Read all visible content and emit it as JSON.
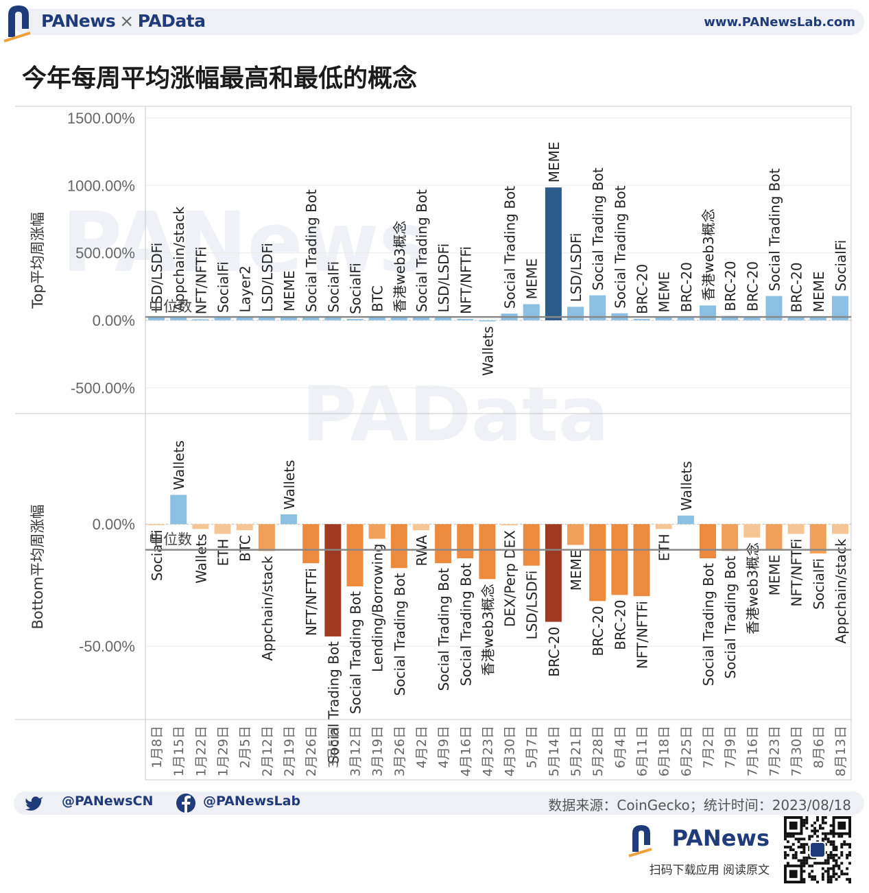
{
  "header": {
    "brand_left": "PANews",
    "brand_sep": "×",
    "brand_right": "PAData",
    "site": "www.PANewsLab.com"
  },
  "title": "今年每周平均涨幅最高和最低的概念",
  "footer": {
    "twitter": "@PANewsCN",
    "facebook": "@PANewsLab",
    "source": "数据来源：CoinGecko；统计时间：2023/08/18",
    "app_name": "PANews",
    "tagline": "扫码下载应用  阅读原文"
  },
  "watermarks": [
    "PANews",
    "PAData"
  ],
  "colors": {
    "top_light": "#8cc0e3",
    "top_dark": "#2d5c8a",
    "bottom_light": "#f6c594",
    "bottom_mid": "#ec8a3d",
    "bottom_dark": "#a13a22",
    "brand": "#1f3b7a"
  },
  "chart_data": {
    "type": "bar",
    "x": [
      "1月8日",
      "1月15日",
      "1月22日",
      "1月29日",
      "2月5日",
      "2月12日",
      "2月19日",
      "2月26日",
      "3月5日",
      "3月12日",
      "3月19日",
      "3月26日",
      "4月2日",
      "4月9日",
      "4月16日",
      "4月23日",
      "4月30日",
      "5月7日",
      "5月14日",
      "5月21日",
      "5月28日",
      "6月4日",
      "6月11日",
      "6月18日",
      "6月25日",
      "7月2日",
      "7月9日",
      "7月16日",
      "7月23日",
      "7月30日",
      "8月6日",
      "8月13日"
    ],
    "panels": [
      {
        "ylabel": "Top平均周涨幅",
        "ylim": [
          -600,
          1500
        ],
        "ticks": [
          1500,
          1000,
          500,
          0,
          -500
        ],
        "tick_labels": [
          "1500.00%",
          "1000.00%",
          "500.00%",
          "0.00%",
          "-500.00%"
        ],
        "median_label": "中位数",
        "median": 25,
        "categories": [
          "LSD/LSDFi",
          "Appchain/stack",
          "NFT/NFTFi",
          "SocialFi",
          "Layer2",
          "LSD/LSDFi",
          "MEME",
          "Social Trading Bot",
          "SocialFi",
          "SocialFi",
          "BTC",
          "香港web3概念",
          "Social Trading Bot",
          "LSD/LSDFi",
          "NFT/NFTFi",
          "Wallets",
          "Social Trading Bot",
          "MEME",
          "MEME",
          "LSD/LSDFi",
          "Social Trading Bot",
          "Social Trading Bot",
          "BRC-20",
          "MEME",
          "BRC-20",
          "香港web3概念",
          "BRC-20",
          "BRC-20",
          "Social Trading Bot",
          "BRC-20",
          "MEME",
          "SocialFi"
        ],
        "values": [
          28,
          30,
          8,
          20,
          22,
          26,
          30,
          24,
          22,
          10,
          26,
          22,
          24,
          22,
          10,
          -8,
          50,
          120,
          985,
          100,
          185,
          52,
          10,
          22,
          24,
          110,
          32,
          30,
          180,
          22,
          24,
          180
        ]
      },
      {
        "ylabel": "Bottom平均周涨幅",
        "ylim": [
          -80,
          45
        ],
        "ticks": [
          0,
          -50
        ],
        "tick_labels": [
          "0.00%",
          "-50.00%"
        ],
        "median_label": "中位数",
        "median": -10.5,
        "categories": [
          "SocialFi",
          "Wallets",
          "Wallets",
          "ETH",
          "BTC",
          "Appchain/stack",
          "Wallets",
          "NFT/NFTFi",
          "Social Trading Bot",
          "Social Trading Bot",
          "Lending/Borrowing",
          "Social Trading Bot",
          "RWA",
          "Social Trading Bot",
          "Social Trading Bot",
          "香港web3概念",
          "DEX/Perp DEX",
          "LSD/LSDFi",
          "BRC-20",
          "MEME",
          "BRC-20",
          "BRC-20",
          "NFT/NFTFi",
          "ETH",
          "Wallets",
          "Social Trading Bot",
          "Social Trading Bot",
          "香港web3概念",
          "MEME",
          "NFT/NFTFi",
          "SocialFi",
          "Appchain/stack"
        ],
        "values": [
          -0.3,
          12,
          -2,
          -4,
          -2.5,
          -11,
          4,
          -16,
          -46,
          -25.5,
          -6,
          -18,
          -2.5,
          -16,
          -14,
          -22.5,
          -0.5,
          -17,
          -40,
          -8.5,
          -31.5,
          -29,
          -29.5,
          -2,
          3.5,
          -14,
          -11,
          -5.5,
          -10.5,
          -4,
          -12,
          -4
        ]
      }
    ]
  }
}
